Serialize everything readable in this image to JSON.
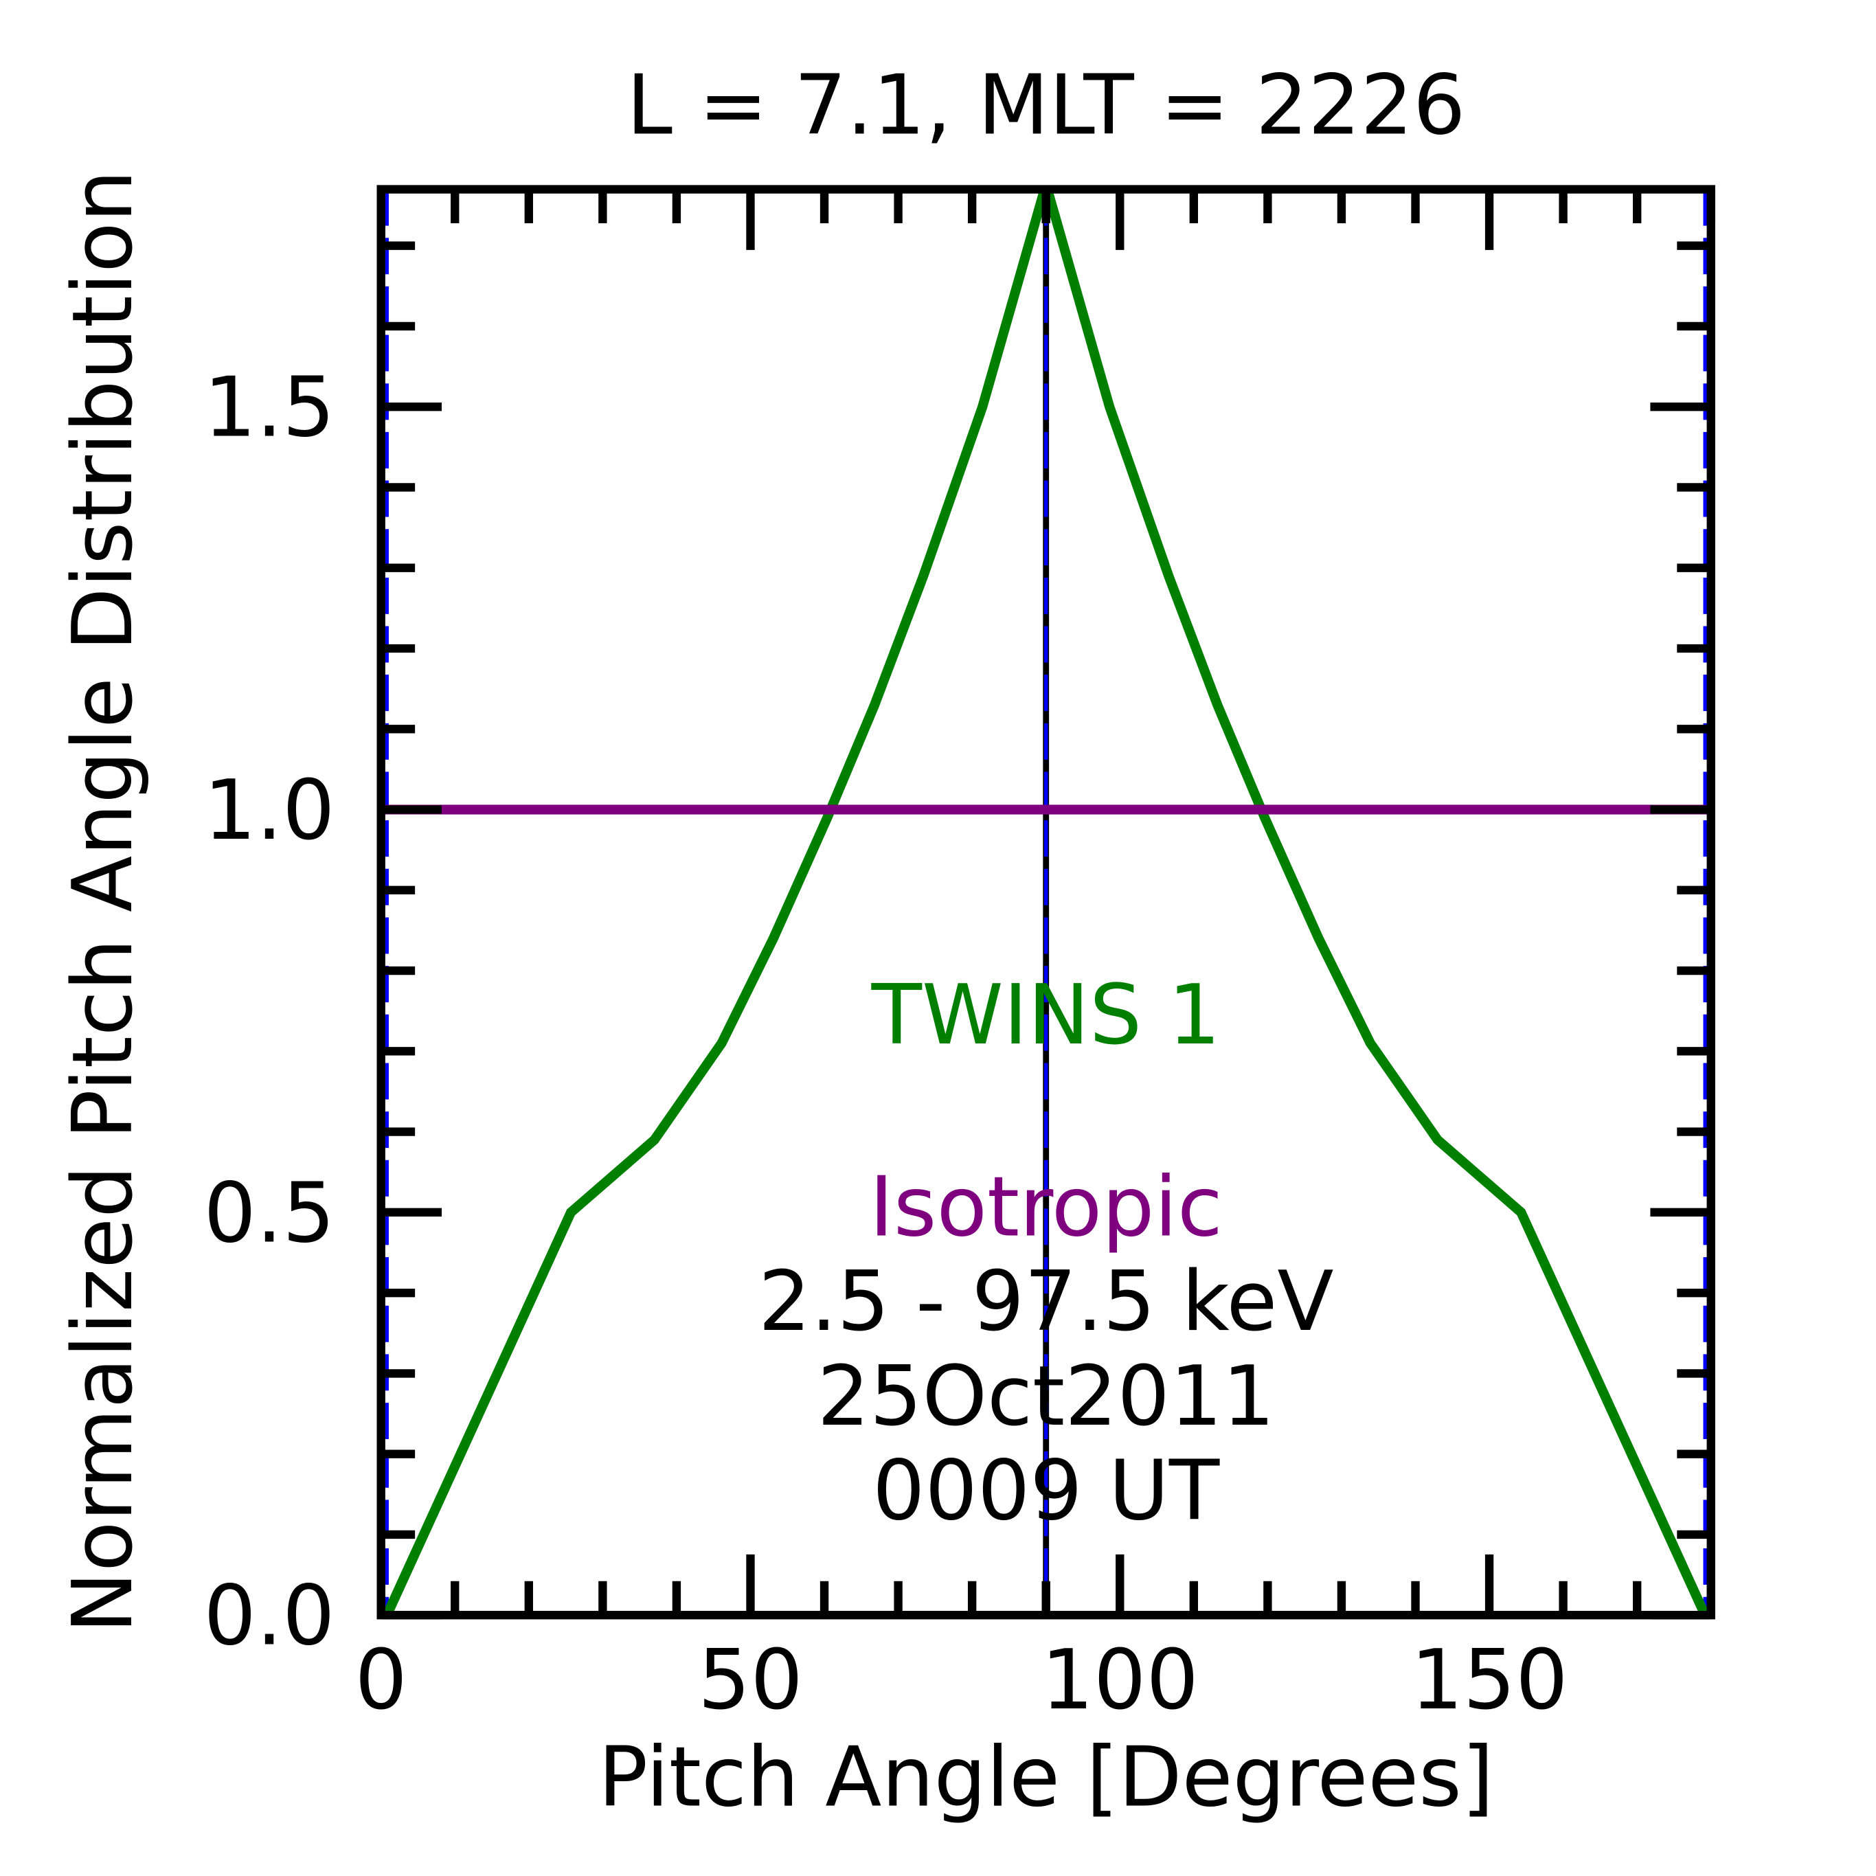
{
  "chart_data": {
    "type": "line",
    "title": "L =  7.1, MLT = 2226",
    "xlabel": "Pitch Angle [Degrees]",
    "ylabel": "Normalized Pitch Angle Distribution",
    "xlim": [
      0,
      180
    ],
    "ylim": [
      0,
      1.77
    ],
    "xticks": [
      0,
      50,
      100,
      150
    ],
    "xtick_labels": [
      "0",
      "50",
      "100",
      "150"
    ],
    "yticks": [
      0,
      0.5,
      1.0,
      1.5
    ],
    "ytick_labels": [
      "0.0",
      "0.5",
      "1.0",
      "1.5"
    ],
    "grid": false,
    "series": [
      {
        "name": "TWINS 1",
        "color": "#007f00",
        "x": [
          0.8,
          25.7,
          37.0,
          46.1,
          53.1,
          60.4,
          66.8,
          73.4,
          81.4,
          89.5,
          90.5,
          98.6,
          106.6,
          113.2,
          119.6,
          126.9,
          133.9,
          143.0,
          154.3,
          179.2
        ],
        "y": [
          0.0,
          0.5,
          0.59,
          0.71,
          0.84,
          0.99,
          1.13,
          1.29,
          1.5,
          1.76,
          1.76,
          1.5,
          1.29,
          1.13,
          0.99,
          0.84,
          0.71,
          0.59,
          0.5,
          0.0
        ]
      },
      {
        "name": "Isotropic",
        "color": "#7f007f",
        "x": [
          0,
          180
        ],
        "y": [
          1.0,
          1.0
        ]
      }
    ],
    "vlines": [
      {
        "x": 90,
        "color": "#000000",
        "style": "solid"
      },
      {
        "x": 0.8,
        "color": "#0000ff",
        "style": "dashed"
      },
      {
        "x": 90,
        "color": "#0000ff",
        "style": "dashed"
      },
      {
        "x": 179.2,
        "color": "#0000ff",
        "style": "dashed"
      }
    ],
    "annotations": {
      "series_label": "TWINS 1",
      "isotropic_label": "Isotropic",
      "energy": "2.5 - 97.5 keV",
      "date": "25Oct2011",
      "time": "0009 UT"
    }
  }
}
